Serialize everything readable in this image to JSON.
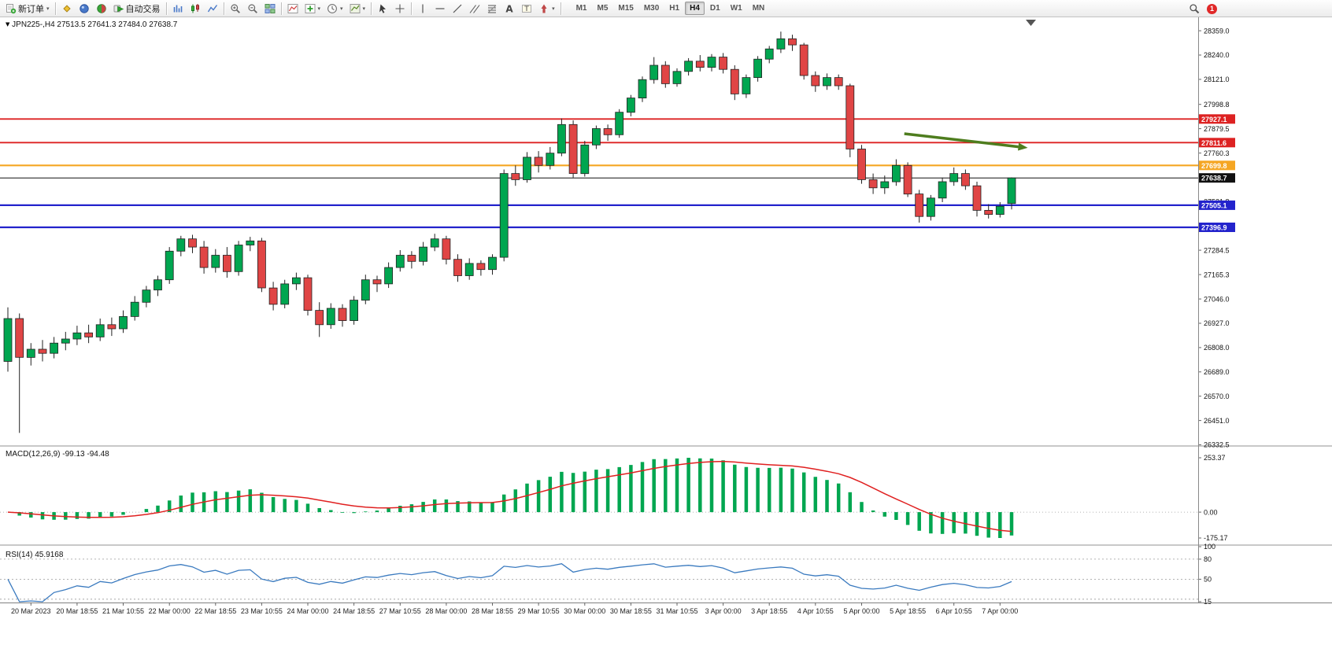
{
  "window": {
    "app": "MetaTrader terminal"
  },
  "toolbar": {
    "groups": [
      {
        "items": [
          {
            "name": "new-order-button",
            "icon": "new-order",
            "label": "新订单",
            "caret": true
          }
        ]
      },
      {
        "items": [
          {
            "name": "market-watch-button",
            "icon": "market-watch"
          },
          {
            "name": "data-window-button",
            "icon": "data-window"
          },
          {
            "name": "navigator-button",
            "icon": "navigator"
          },
          {
            "name": "autotrade-button",
            "icon": "autotrade",
            "label": "自动交易"
          }
        ]
      },
      {
        "items": [
          {
            "name": "bar-chart-button",
            "icon": "bar-chart"
          },
          {
            "name": "candle-chart-button",
            "icon": "candle-chart"
          },
          {
            "name": "line-chart-button",
            "icon": "line-chart"
          }
        ]
      },
      {
        "items": [
          {
            "name": "zoom-in-button",
            "icon": "zoom-in"
          },
          {
            "name": "zoom-out-button",
            "icon": "zoom-out"
          },
          {
            "name": "tile-windows-button",
            "icon": "tile-windows"
          }
        ]
      },
      {
        "items": [
          {
            "name": "indicators-button",
            "icon": "indicators"
          },
          {
            "name": "add-indicator-button",
            "icon": "add-indicator",
            "caret": true
          },
          {
            "name": "periods-button",
            "icon": "clock",
            "caret": true
          },
          {
            "name": "templates-button",
            "icon": "template",
            "caret": true
          }
        ]
      },
      {
        "items": [
          {
            "name": "cursor-button",
            "icon": "cursor"
          },
          {
            "name": "crosshair-button",
            "icon": "crosshair"
          }
        ]
      },
      {
        "items": [
          {
            "name": "vertical-line-button",
            "icon": "vline"
          },
          {
            "name": "horizontal-line-button",
            "icon": "hline"
          },
          {
            "name": "trendline-button",
            "icon": "trendline"
          },
          {
            "name": "channel-button",
            "icon": "channel"
          },
          {
            "name": "fibonacci-button",
            "icon": "fibonacci"
          },
          {
            "name": "text-button",
            "icon": "text"
          },
          {
            "name": "label-button",
            "icon": "label"
          },
          {
            "name": "arrows-button",
            "icon": "arrow",
            "caret": true
          }
        ]
      }
    ],
    "timeframes": [
      {
        "label": "M1"
      },
      {
        "label": "M5"
      },
      {
        "label": "M15"
      },
      {
        "label": "M30"
      },
      {
        "label": "H1"
      },
      {
        "label": "H4",
        "active": true
      },
      {
        "label": "D1"
      },
      {
        "label": "W1"
      },
      {
        "label": "MN"
      }
    ],
    "right": {
      "badge_count": "1"
    }
  },
  "chart_data": {
    "type": "candlestick",
    "symbol": "JPN225-",
    "timeframe": "H4",
    "price_axis": {
      "min": 26330,
      "max": 28425,
      "ticks": [
        28359.0,
        28240.0,
        28121.0,
        27998.8,
        27879.5,
        27760.3,
        27641.0,
        27521.8,
        27403.0,
        27284.5,
        27165.3,
        27046.0,
        26927.0,
        26808.0,
        26689.0,
        26570.0,
        26451.0,
        26332.5
      ]
    },
    "time_axis_labels": [
      "20 Mar 2023",
      "20 Mar 18:55",
      "21 Mar 10:55",
      "22 Mar 00:00",
      "22 Mar 18:55",
      "23 Mar 10:55",
      "24 Mar 00:00",
      "24 Mar 18:55",
      "27 Mar 10:55",
      "28 Mar 00:00",
      "28 Mar 18:55",
      "29 Mar 10:55",
      "30 Mar 00:00",
      "30 Mar 18:55",
      "31 Mar 10:55",
      "3 Apr 00:00",
      "3 Apr 18:55",
      "4 Apr 10:55",
      "5 Apr 00:00",
      "5 Apr 18:55",
      "6 Apr 10:55",
      "7 Apr 00:00"
    ],
    "colors": {
      "up": "#00a650",
      "down": "#e04545",
      "wick": "#222222"
    },
    "candles": [
      [
        26740,
        27005,
        26690,
        26950
      ],
      [
        26950,
        26975,
        26390,
        26760
      ],
      [
        26760,
        26830,
        26720,
        26800
      ],
      [
        26800,
        26845,
        26740,
        26780
      ],
      [
        26780,
        26860,
        26755,
        26830
      ],
      [
        26830,
        26885,
        26795,
        26850
      ],
      [
        26850,
        26915,
        26820,
        26880
      ],
      [
        26880,
        26920,
        26830,
        26860
      ],
      [
        26860,
        26950,
        26840,
        26920
      ],
      [
        26920,
        26955,
        26865,
        26900
      ],
      [
        26900,
        26990,
        26880,
        26960
      ],
      [
        26960,
        27060,
        26940,
        27030
      ],
      [
        27030,
        27110,
        27005,
        27090
      ],
      [
        27090,
        27160,
        27060,
        27140
      ],
      [
        27140,
        27300,
        27120,
        27280
      ],
      [
        27280,
        27355,
        27255,
        27340
      ],
      [
        27340,
        27360,
        27270,
        27300
      ],
      [
        27300,
        27330,
        27170,
        27200
      ],
      [
        27200,
        27290,
        27175,
        27260
      ],
      [
        27260,
        27300,
        27150,
        27180
      ],
      [
        27180,
        27330,
        27160,
        27310
      ],
      [
        27310,
        27350,
        27280,
        27330
      ],
      [
        27330,
        27345,
        27080,
        27100
      ],
      [
        27100,
        27130,
        26990,
        27020
      ],
      [
        27020,
        27140,
        27000,
        27120
      ],
      [
        27120,
        27175,
        27090,
        27150
      ],
      [
        27150,
        27165,
        26965,
        26990
      ],
      [
        26990,
        27030,
        26860,
        26920
      ],
      [
        26920,
        27025,
        26900,
        27000
      ],
      [
        27000,
        27020,
        26910,
        26940
      ],
      [
        26940,
        27060,
        26920,
        27040
      ],
      [
        27040,
        27165,
        27020,
        27140
      ],
      [
        27140,
        27160,
        27080,
        27120
      ],
      [
        27120,
        27225,
        27100,
        27200
      ],
      [
        27200,
        27285,
        27180,
        27260
      ],
      [
        27260,
        27280,
        27195,
        27230
      ],
      [
        27230,
        27325,
        27210,
        27300
      ],
      [
        27300,
        27365,
        27280,
        27340
      ],
      [
        27340,
        27355,
        27215,
        27240
      ],
      [
        27240,
        27265,
        27130,
        27160
      ],
      [
        27160,
        27245,
        27140,
        27220
      ],
      [
        27220,
        27235,
        27160,
        27190
      ],
      [
        27190,
        27265,
        27165,
        27250
      ],
      [
        27250,
        27680,
        27230,
        27660
      ],
      [
        27660,
        27700,
        27600,
        27630
      ],
      [
        27630,
        27765,
        27615,
        27740
      ],
      [
        27740,
        27770,
        27665,
        27700
      ],
      [
        27700,
        27790,
        27680,
        27760
      ],
      [
        27760,
        27930,
        27745,
        27900
      ],
      [
        27900,
        27920,
        27640,
        27660
      ],
      [
        27660,
        27820,
        27645,
        27800
      ],
      [
        27800,
        27895,
        27780,
        27880
      ],
      [
        27880,
        27900,
        27820,
        27850
      ],
      [
        27850,
        27975,
        27835,
        27960
      ],
      [
        27960,
        28045,
        27940,
        28030
      ],
      [
        28030,
        28135,
        28010,
        28120
      ],
      [
        28120,
        28230,
        28100,
        28190
      ],
      [
        28190,
        28210,
        28080,
        28100
      ],
      [
        28100,
        28175,
        28085,
        28160
      ],
      [
        28160,
        28225,
        28140,
        28210
      ],
      [
        28210,
        28240,
        28160,
        28180
      ],
      [
        28180,
        28245,
        28160,
        28230
      ],
      [
        28230,
        28250,
        28150,
        28170
      ],
      [
        28170,
        28190,
        28020,
        28050
      ],
      [
        28050,
        28145,
        28030,
        28130
      ],
      [
        28130,
        28235,
        28110,
        28220
      ],
      [
        28220,
        28285,
        28200,
        28270
      ],
      [
        28270,
        28355,
        28250,
        28320
      ],
      [
        28320,
        28340,
        28260,
        28290
      ],
      [
        28290,
        28300,
        28120,
        28140
      ],
      [
        28140,
        28160,
        28060,
        28090
      ],
      [
        28090,
        28150,
        28070,
        28130
      ],
      [
        28130,
        28145,
        28070,
        28090
      ],
      [
        28090,
        28100,
        27740,
        27780
      ],
      [
        27780,
        27800,
        27610,
        27630
      ],
      [
        27630,
        27660,
        27560,
        27590
      ],
      [
        27590,
        27650,
        27560,
        27620
      ],
      [
        27620,
        27730,
        27600,
        27700
      ],
      [
        27700,
        27715,
        27545,
        27560
      ],
      [
        27560,
        27580,
        27420,
        27450
      ],
      [
        27450,
        27555,
        27430,
        27540
      ],
      [
        27540,
        27640,
        27520,
        27620
      ],
      [
        27620,
        27690,
        27600,
        27660
      ],
      [
        27660,
        27680,
        27580,
        27600
      ],
      [
        27600,
        27620,
        27450,
        27480
      ],
      [
        27480,
        27510,
        27440,
        27460
      ],
      [
        27460,
        27520,
        27445,
        27500
      ],
      [
        27513.5,
        27641.3,
        27484.0,
        27638.7
      ]
    ],
    "hlines": [
      {
        "price": 27927.1,
        "color": "#dd2222",
        "label": "27927.1",
        "width": 1.8
      },
      {
        "price": 27811.6,
        "color": "#dd2222",
        "label": "27811.6",
        "width": 1.8
      },
      {
        "price": 27699.8,
        "color": "#f5a623",
        "label": "27699.8",
        "width": 2.2
      },
      {
        "price": 27638.7,
        "color": "#111111",
        "label": "27638.7",
        "width": 1
      },
      {
        "price": 27505.1,
        "color": "#2323cc",
        "label": "27505.1",
        "width": 2.2
      },
      {
        "price": 27396.9,
        "color": "#2323cc",
        "label": "27396.9",
        "width": 2.2
      }
    ],
    "arrow_annotation": {
      "from_bar": 77.7,
      "from_price": 27855,
      "to_bar": 88.4,
      "to_price": 27786,
      "color": "#4e7d1e"
    },
    "macd": {
      "label": "MACD(12,26,9)",
      "values_text": "-99.13 -94.48",
      "params": [
        12,
        26,
        9
      ],
      "axis_labels": [
        "253.37",
        "0.00",
        "-175.17"
      ],
      "hist_color": "#00a650",
      "signal_color": "#e02020"
    },
    "rsi": {
      "label": "RSI(14)",
      "value_text": "45.9168",
      "period": 14,
      "range": [
        15,
        100
      ],
      "levels": [
        80,
        50,
        20
      ],
      "axis_labels": [
        {
          "v": 100,
          "t": "100"
        },
        {
          "v": 80,
          "t": "80"
        },
        {
          "v": 50,
          "t": "50"
        },
        {
          "v": 15,
          "t": "15"
        }
      ],
      "line_color": "#3a7abf"
    }
  }
}
